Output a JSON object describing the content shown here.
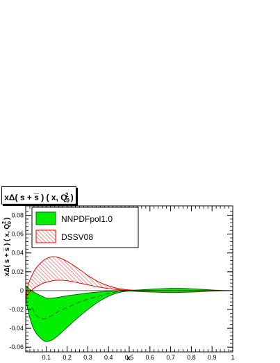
{
  "chart_data": {
    "type": "area",
    "title": "xΔ( s + s̅ ) ( x, Q",
    "title_sup": "2",
    "title_sub": "0",
    "title_close": ")",
    "xlabel": "x",
    "ylabel": "xΔ( s + s̅ ) ( x, Q",
    "ylabel_sup": "2",
    "ylabel_sub": "0",
    "ylabel_close": ")",
    "xlim": [
      0.0,
      1.0
    ],
    "ylim": [
      -0.065,
      0.09
    ],
    "x_ticks": [
      0.1,
      0.2,
      0.3,
      0.4,
      0.5,
      0.6,
      0.7,
      0.8,
      0.9,
      1
    ],
    "x_tick_labels": [
      "0.1",
      "0.2",
      "0.3",
      "0.4",
      "0.5",
      "0.6",
      "0.7",
      "0.8",
      "0.9",
      "1"
    ],
    "y_ticks": [
      -0.06,
      -0.04,
      -0.02,
      0,
      0.02,
      0.04,
      0.06,
      0.08
    ],
    "y_tick_labels": [
      "-0.06",
      "-0.04",
      "-0.02",
      "0",
      "0.02",
      "0.04",
      "0.06",
      "0.08"
    ],
    "legend_placement": "top-left",
    "colors": {
      "nnpdf_fill": "#00ee00",
      "nnpdf_line": "#006600",
      "dssv_line": "#ee0000"
    },
    "series": [
      {
        "name": "NNPDFpol1.0",
        "style": "filled-band",
        "x": [
          0.001,
          0.01,
          0.03,
          0.05,
          0.08,
          0.1,
          0.13,
          0.16,
          0.2,
          0.25,
          0.3,
          0.35,
          0.4,
          0.45,
          0.5,
          0.55,
          0.6,
          0.65,
          0.7,
          0.75,
          0.8,
          0.85,
          0.9,
          0.95,
          1.0
        ],
        "upper": [
          0.005,
          0.003,
          0.0,
          -0.003,
          -0.006,
          -0.008,
          -0.008,
          -0.007,
          -0.0055,
          -0.004,
          -0.0025,
          -0.0015,
          -0.0006,
          0.0,
          0.0002,
          0.0008,
          0.0014,
          0.002,
          0.0024,
          0.0024,
          0.002,
          0.0014,
          0.0007,
          0.0002,
          0.0
        ],
        "lower": [
          -0.005,
          -0.02,
          -0.036,
          -0.045,
          -0.052,
          -0.054,
          -0.052,
          -0.047,
          -0.039,
          -0.029,
          -0.02,
          -0.012,
          -0.006,
          -0.002,
          -0.0005,
          -0.001,
          -0.0014,
          -0.0018,
          -0.002,
          -0.0018,
          -0.0015,
          -0.001,
          -0.0005,
          -0.0001,
          0.0
        ],
        "central_x": [
          0.03,
          0.05,
          0.08,
          0.1,
          0.13,
          0.16,
          0.2,
          0.25,
          0.3,
          0.35,
          0.4,
          0.45,
          0.5
        ],
        "central": [
          -0.018,
          -0.026,
          -0.03,
          -0.029,
          -0.026,
          -0.022,
          -0.018,
          -0.013,
          -0.009,
          -0.006,
          -0.003,
          -0.001,
          0.0
        ]
      },
      {
        "name": "DSSV08",
        "style": "hatched-band",
        "x": [
          0.001,
          0.01,
          0.03,
          0.05,
          0.08,
          0.1,
          0.13,
          0.16,
          0.2,
          0.25,
          0.3,
          0.35,
          0.4,
          0.45,
          0.5,
          0.55,
          0.6,
          0.65,
          0.7,
          0.75,
          0.8,
          0.85,
          0.9,
          0.95,
          1.0
        ],
        "upper": [
          -0.008,
          0.005,
          0.016,
          0.024,
          0.031,
          0.034,
          0.036,
          0.035,
          0.031,
          0.024,
          0.016,
          0.0095,
          0.005,
          0.0022,
          0.0008,
          0.0003,
          0.0001,
          0.0,
          0.0,
          0.0,
          0.0,
          0.0,
          0.0,
          0.0,
          0.0
        ],
        "lower": [
          -0.008,
          -0.004,
          0.0005,
          0.004,
          0.0075,
          0.009,
          0.0105,
          0.011,
          0.0105,
          0.0085,
          0.0062,
          0.004,
          0.0022,
          0.001,
          0.0003,
          0.0001,
          0.0,
          0.0,
          0.0,
          0.0,
          0.0,
          0.0,
          0.0,
          0.0,
          0.0
        ]
      }
    ]
  }
}
